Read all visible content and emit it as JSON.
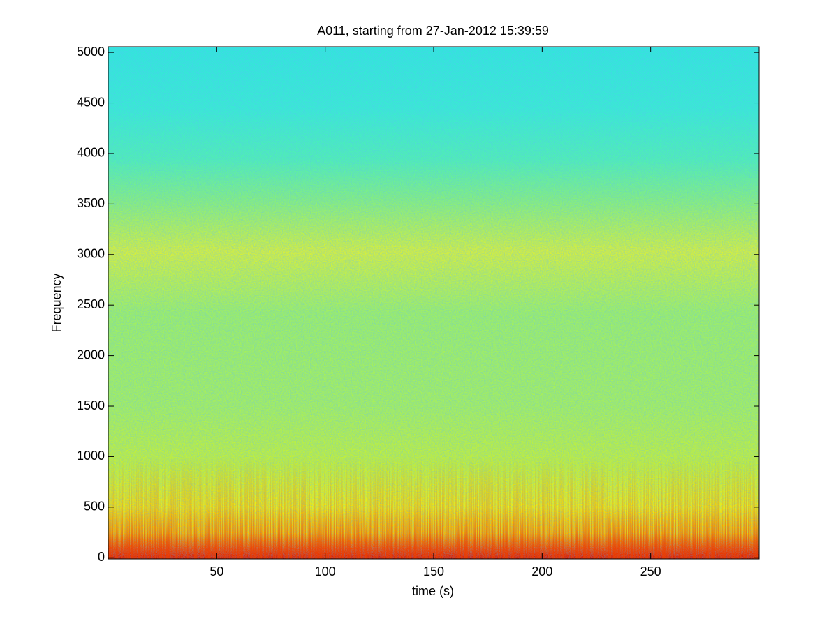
{
  "chart_data": {
    "type": "spectrogram",
    "title": "A011, starting from 27-Jan-2012 15:39:59",
    "xlabel": "time (s)",
    "ylabel": "Frequency",
    "xlim": [
      0,
      300
    ],
    "xticks": [
      50,
      100,
      150,
      200,
      250
    ],
    "ylim": [
      -12,
      5056
    ],
    "yticks": [
      0,
      500,
      1000,
      1500,
      2000,
      2500,
      3000,
      3500,
      4000,
      4500,
      5000
    ],
    "colormap": "jet"
  }
}
